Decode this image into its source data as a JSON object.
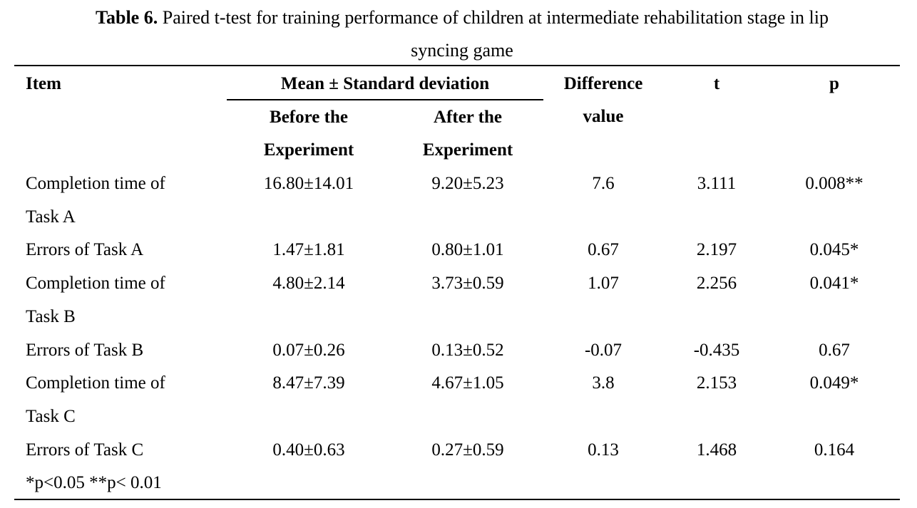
{
  "caption": {
    "label": "Table 6.",
    "text_line1": " Paired t-test for training performance of children at intermediate rehabilitation stage in lip",
    "text_line2": "syncing game"
  },
  "header": {
    "item": "Item",
    "mean_sd": "Mean ± Standard deviation",
    "before_line1": "Before the",
    "before_line2": "Experiment",
    "after_line1": "After the",
    "after_line2": "Experiment",
    "diff_line1": "Difference",
    "diff_line2": "value",
    "t": "t",
    "p": "p"
  },
  "rows": [
    {
      "item_line1": "Completion time of",
      "item_line2": "Task A",
      "before": "16.80±14.01",
      "after": "9.20±5.23",
      "diff": "7.6",
      "t": "3.111",
      "p": "0.008**"
    },
    {
      "item_line1": "Errors of Task A",
      "before": "1.47±1.81",
      "after": "0.80±1.01",
      "diff": "0.67",
      "t": "2.197",
      "p": "0.045*"
    },
    {
      "item_line1": "Completion time of",
      "item_line2": "Task B",
      "before": "4.80±2.14",
      "after": "3.73±0.59",
      "diff": "1.07",
      "t": "2.256",
      "p": "0.041*"
    },
    {
      "item_line1": "Errors of Task B",
      "before": "0.07±0.26",
      "after": "0.13±0.52",
      "diff": "-0.07",
      "t": "-0.435",
      "p": "0.67"
    },
    {
      "item_line1": "Completion time of",
      "item_line2": "Task C",
      "before": "8.47±7.39",
      "after": "4.67±1.05",
      "diff": "3.8",
      "t": "2.153",
      "p": "0.049*"
    },
    {
      "item_line1": "Errors of Task C",
      "before": "0.40±0.63",
      "after": "0.27±0.59",
      "diff": "0.13",
      "t": "1.468",
      "p": "0.164"
    }
  ],
  "footnote": "*p<0.05 **p< 0.01"
}
